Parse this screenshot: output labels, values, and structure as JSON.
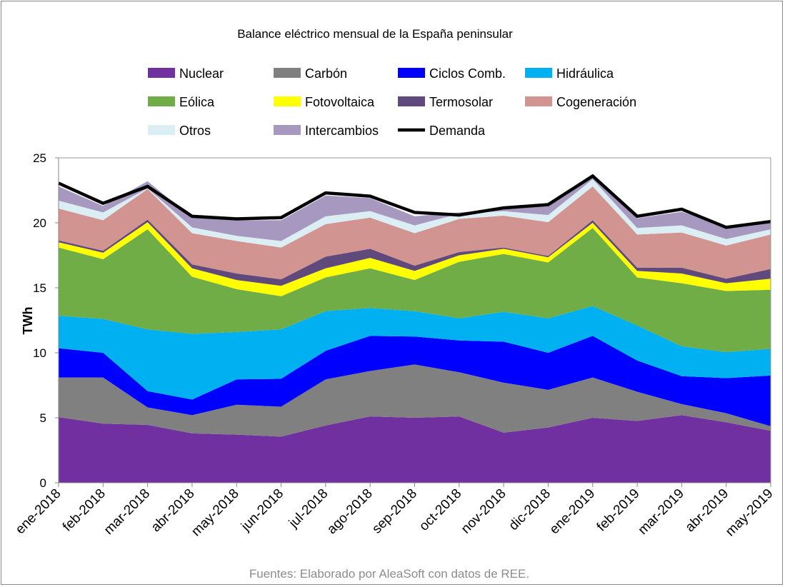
{
  "chart_data": {
    "type": "area",
    "stacked": true,
    "title": "Balance eléctrico mensual de la España peninsular",
    "xlabel": "",
    "ylabel": "TWh",
    "ylim": [
      0,
      25
    ],
    "yticks": [
      "0",
      "5",
      "10",
      "15",
      "20",
      "25"
    ],
    "grid": false,
    "legend_position": "top",
    "categories": [
      "ene-2018",
      "feb-2018",
      "mar-2018",
      "abr-2018",
      "may-2018",
      "jun-2018",
      "jul-2018",
      "ago-2018",
      "sep-2018",
      "oct-2018",
      "nov-2018",
      "dic-2018",
      "ene-2019",
      "feb-2019",
      "mar-2019",
      "abr-2019",
      "may-2019"
    ],
    "series": [
      {
        "name": "Nuclear",
        "color": "#7030A0",
        "values": [
          5.05,
          4.55,
          4.45,
          3.8,
          3.7,
          3.55,
          4.4,
          5.1,
          5.0,
          5.1,
          3.85,
          4.25,
          5.0,
          4.75,
          5.2,
          4.65,
          4.0
        ]
      },
      {
        "name": "Carbón",
        "color": "#808080",
        "values": [
          3.05,
          3.55,
          1.35,
          1.4,
          2.3,
          2.3,
          3.55,
          3.5,
          4.1,
          3.4,
          3.85,
          2.9,
          3.1,
          2.25,
          0.85,
          0.7,
          0.35
        ]
      },
      {
        "name": "Ciclos Comb.",
        "color": "#0000FF",
        "values": [
          2.25,
          1.9,
          1.25,
          1.2,
          1.95,
          2.15,
          2.2,
          2.7,
          2.15,
          2.45,
          3.15,
          2.85,
          3.2,
          2.4,
          2.15,
          2.7,
          3.9
        ]
      },
      {
        "name": "Hidráulica",
        "color": "#00B0F0",
        "values": [
          2.5,
          2.6,
          4.75,
          5.05,
          3.65,
          3.8,
          3.05,
          2.15,
          1.95,
          1.7,
          2.3,
          2.65,
          2.3,
          2.7,
          2.3,
          2.0,
          2.05
        ]
      },
      {
        "name": "Eólica",
        "color": "#70AD47",
        "values": [
          5.25,
          4.6,
          7.7,
          4.4,
          3.3,
          2.55,
          2.6,
          3.05,
          2.4,
          4.35,
          4.45,
          4.3,
          6.0,
          3.7,
          4.85,
          4.7,
          4.55
        ]
      },
      {
        "name": "Fotovoltaica",
        "color": "#FFFF00",
        "values": [
          0.4,
          0.5,
          0.55,
          0.65,
          0.7,
          0.8,
          0.7,
          0.8,
          0.7,
          0.5,
          0.4,
          0.4,
          0.4,
          0.5,
          0.75,
          0.6,
          0.85
        ]
      },
      {
        "name": "Termosolar",
        "color": "#604A7B",
        "values": [
          0.15,
          0.15,
          0.2,
          0.3,
          0.5,
          0.5,
          0.9,
          0.7,
          0.4,
          0.25,
          0.1,
          0.1,
          0.2,
          0.25,
          0.45,
          0.35,
          0.75
        ]
      },
      {
        "name": "Cogeneración",
        "color": "#D29490",
        "values": [
          2.45,
          2.35,
          2.35,
          2.4,
          2.5,
          2.45,
          2.5,
          2.4,
          2.5,
          2.55,
          2.45,
          2.6,
          2.6,
          2.55,
          2.7,
          2.55,
          2.65
        ]
      },
      {
        "name": "Otros",
        "color": "#DAEEF3",
        "values": [
          0.6,
          0.6,
          0.05,
          0.45,
          0.4,
          0.5,
          0.6,
          0.5,
          0.6,
          0.4,
          0.35,
          0.55,
          0.55,
          0.5,
          0.55,
          0.5,
          0.4
        ]
      },
      {
        "name": "Intercambios",
        "color": "#A698BF",
        "values": [
          1.1,
          0.5,
          0.55,
          0.75,
          1.2,
          1.6,
          1.6,
          1.0,
          0.7,
          0.1,
          0.15,
          0.75,
          0.1,
          0.75,
          1.05,
          1.0,
          0.55
        ]
      }
    ],
    "line_series": {
      "name": "Demanda",
      "color": "#000000",
      "values": [
        23.05,
        21.5,
        22.8,
        20.5,
        20.3,
        20.4,
        22.3,
        22.05,
        20.8,
        20.6,
        21.15,
        21.4,
        23.6,
        20.5,
        21.05,
        19.65,
        20.1
      ]
    },
    "source": "Fuentes: Elaborado por AleaSoft con datos de REE."
  }
}
